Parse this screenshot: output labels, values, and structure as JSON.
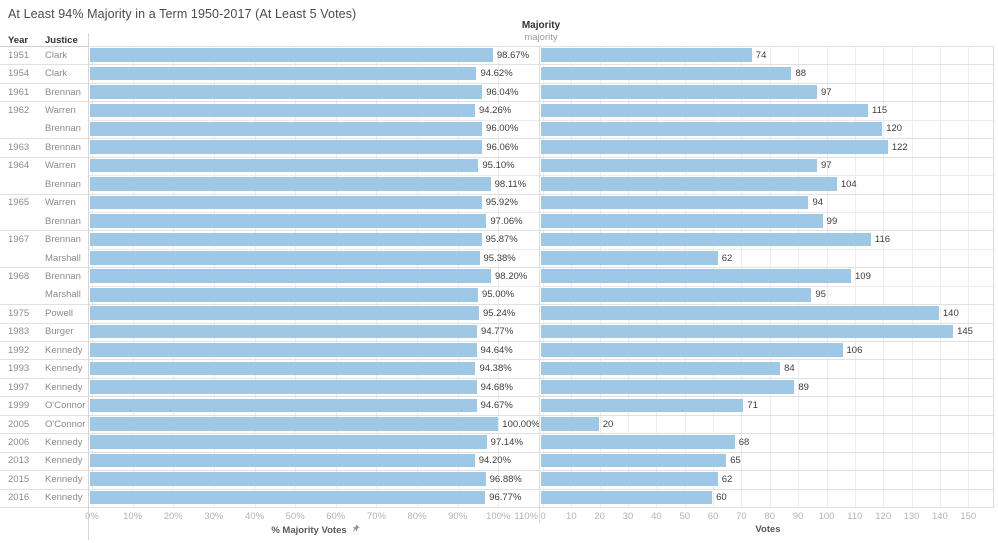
{
  "title": "At Least 94% Majority in a Term 1950-2017 (At Least 5 Votes)",
  "row_headers": {
    "year": "Year",
    "justice": "Justice"
  },
  "column_group": {
    "label": "Majority",
    "sublabel": "majority"
  },
  "colors": {
    "bar": "#9FC8E7",
    "grid": "#ededed",
    "divider": "#d6d6d6"
  },
  "chart_data": {
    "type": "bar",
    "orientation": "horizontal",
    "title": "At Least 94% Majority in a Term 1950-2017 (At Least 5 Votes)",
    "legend_position": "none",
    "grid": true,
    "rows": [
      {
        "year": "1951",
        "justice": "Clark",
        "pct": 98.67,
        "pct_label": "98.67%",
        "votes": 74
      },
      {
        "year": "1954",
        "justice": "Clark",
        "pct": 94.62,
        "pct_label": "94.62%",
        "votes": 88
      },
      {
        "year": "1961",
        "justice": "Brennan",
        "pct": 96.04,
        "pct_label": "96.04%",
        "votes": 97
      },
      {
        "year": "1962",
        "justice": "Warren",
        "pct": 94.26,
        "pct_label": "94.26%",
        "votes": 115
      },
      {
        "year": "",
        "justice": "Brennan",
        "pct": 96.0,
        "pct_label": "96.00%",
        "votes": 120
      },
      {
        "year": "1963",
        "justice": "Brennan",
        "pct": 96.06,
        "pct_label": "96.06%",
        "votes": 122
      },
      {
        "year": "1964",
        "justice": "Warren",
        "pct": 95.1,
        "pct_label": "95.10%",
        "votes": 97
      },
      {
        "year": "",
        "justice": "Brennan",
        "pct": 98.11,
        "pct_label": "98.11%",
        "votes": 104
      },
      {
        "year": "1965",
        "justice": "Warren",
        "pct": 95.92,
        "pct_label": "95.92%",
        "votes": 94
      },
      {
        "year": "",
        "justice": "Brennan",
        "pct": 97.06,
        "pct_label": "97.06%",
        "votes": 99
      },
      {
        "year": "1967",
        "justice": "Brennan",
        "pct": 95.87,
        "pct_label": "95.87%",
        "votes": 116
      },
      {
        "year": "",
        "justice": "Marshall",
        "pct": 95.38,
        "pct_label": "95.38%",
        "votes": 62
      },
      {
        "year": "1968",
        "justice": "Brennan",
        "pct": 98.2,
        "pct_label": "98.20%",
        "votes": 109
      },
      {
        "year": "",
        "justice": "Marshall",
        "pct": 95.0,
        "pct_label": "95.00%",
        "votes": 95
      },
      {
        "year": "1975",
        "justice": "Powell",
        "pct": 95.24,
        "pct_label": "95.24%",
        "votes": 140
      },
      {
        "year": "1983",
        "justice": "Burger",
        "pct": 94.77,
        "pct_label": "94.77%",
        "votes": 145
      },
      {
        "year": "1992",
        "justice": "Kennedy",
        "pct": 94.64,
        "pct_label": "94.64%",
        "votes": 106
      },
      {
        "year": "1993",
        "justice": "Kennedy",
        "pct": 94.38,
        "pct_label": "94.38%",
        "votes": 84
      },
      {
        "year": "1997",
        "justice": "Kennedy",
        "pct": 94.68,
        "pct_label": "94.68%",
        "votes": 89
      },
      {
        "year": "1999",
        "justice": "O'Connor",
        "pct": 94.67,
        "pct_label": "94.67%",
        "votes": 71
      },
      {
        "year": "2005",
        "justice": "O'Connor",
        "pct": 100.0,
        "pct_label": "100.00%",
        "votes": 20
      },
      {
        "year": "2006",
        "justice": "Kennedy",
        "pct": 97.14,
        "pct_label": "97.14%",
        "votes": 68
      },
      {
        "year": "2013",
        "justice": "Kennedy",
        "pct": 94.2,
        "pct_label": "94.20%",
        "votes": 65
      },
      {
        "year": "2015",
        "justice": "Kennedy",
        "pct": 96.88,
        "pct_label": "96.88%",
        "votes": 62
      },
      {
        "year": "2016",
        "justice": "Kennedy",
        "pct": 96.77,
        "pct_label": "96.77%",
        "votes": 60
      }
    ],
    "axes": {
      "pct": {
        "title": "% Majority Votes",
        "pinned": true,
        "tick_values": [
          0,
          10,
          20,
          30,
          40,
          50,
          60,
          70,
          80,
          90,
          100,
          110
        ],
        "tick_labels": [
          "0%",
          "10%",
          "20%",
          "30%",
          "40%",
          "50%",
          "60%",
          "70%",
          "80%",
          "90%",
          "100%",
          "110%"
        ],
        "range": [
          0,
          112
        ]
      },
      "votes": {
        "title": "Votes",
        "tick_values": [
          0,
          10,
          20,
          30,
          40,
          50,
          60,
          70,
          80,
          90,
          100,
          110,
          120,
          130,
          140,
          150
        ],
        "range": [
          0,
          159
        ]
      }
    },
    "bar_color": "#9FC8E7"
  }
}
